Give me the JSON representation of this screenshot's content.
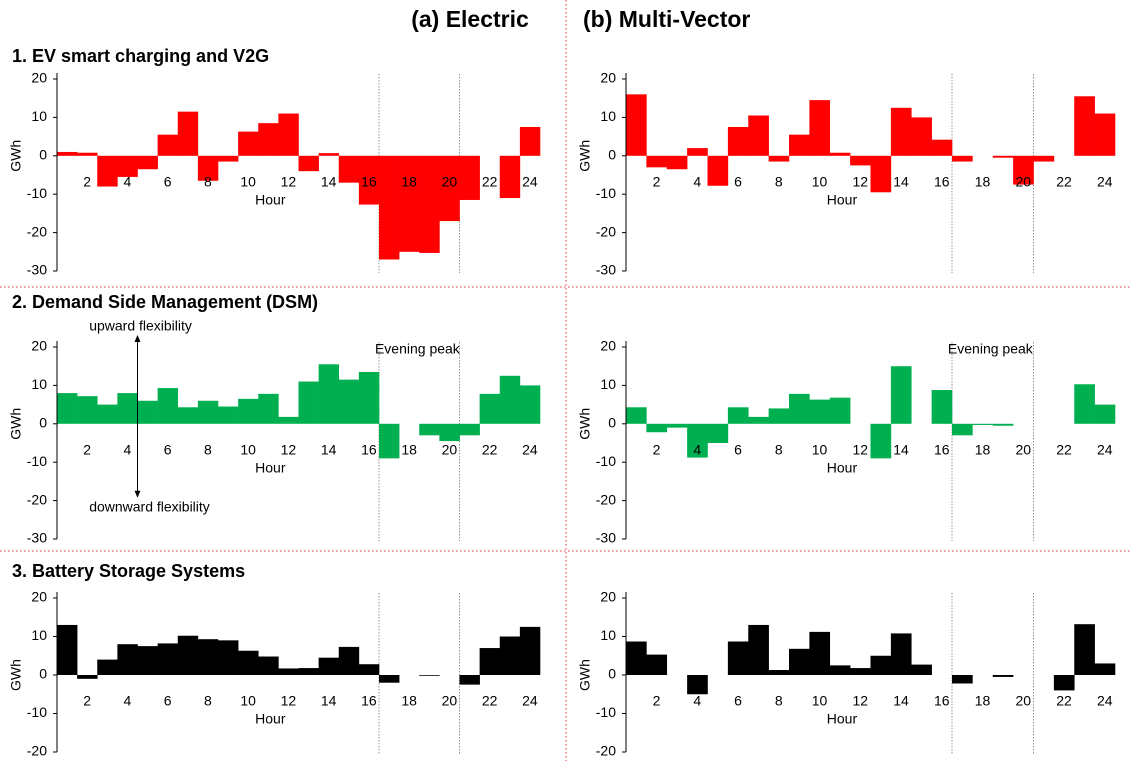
{
  "column_titles": [
    "(a) Electric",
    "(b) Multi-Vector"
  ],
  "row_titles": [
    "1. EV smart charging and V2G",
    "2. Demand Side Management (DSM)",
    "3. Battery Storage Systems"
  ],
  "chart_data": [
    {
      "type": "bar",
      "xlabel": "Hour",
      "ylabel": "GWh",
      "color": "#ff0000",
      "categories": [
        null,
        2,
        null,
        4,
        null,
        6,
        null,
        8,
        null,
        10,
        null,
        12,
        null,
        14,
        null,
        16,
        null,
        18,
        null,
        20,
        null,
        22,
        null,
        24
      ],
      "values": [
        1,
        0.8,
        -8,
        -5.5,
        -3.5,
        5.5,
        11.5,
        -6.5,
        -1.5,
        6.3,
        8.5,
        11,
        -4,
        0.7,
        -7,
        -12.7,
        -27,
        -25,
        -25.3,
        -17,
        -11.5,
        0,
        -11,
        7.5
      ],
      "ylim": [
        -30,
        20
      ],
      "yticks": [
        -30,
        -20,
        -10,
        0,
        10,
        20
      ]
    },
    {
      "type": "bar",
      "xlabel": "Hour",
      "ylabel": "GWh",
      "color": "#ff0000",
      "categories": [
        null,
        2,
        null,
        4,
        null,
        6,
        null,
        8,
        null,
        10,
        null,
        12,
        null,
        14,
        null,
        16,
        null,
        18,
        null,
        20,
        null,
        22,
        null,
        24
      ],
      "values": [
        16,
        -3,
        -3.5,
        2,
        -7.8,
        7.5,
        10.5,
        -1.5,
        5.5,
        14.5,
        0.8,
        -2.5,
        -9.5,
        12.5,
        10,
        4.2,
        -1.5,
        0,
        -0.5,
        -7.5,
        -1.5,
        0,
        15.5,
        11
      ],
      "ylim": [
        -30,
        20
      ],
      "yticks": [
        -30,
        -20,
        -10,
        0,
        10,
        20
      ]
    },
    {
      "type": "bar",
      "xlabel": "Hour",
      "ylabel": "GWh",
      "color": "#00b050",
      "categories": [
        null,
        2,
        null,
        4,
        null,
        6,
        null,
        8,
        null,
        10,
        null,
        12,
        null,
        14,
        null,
        16,
        null,
        18,
        null,
        20,
        null,
        22,
        null,
        24
      ],
      "values": [
        8,
        7.2,
        5,
        8,
        6,
        9.3,
        4.3,
        6,
        4.5,
        6.5,
        7.8,
        1.8,
        11,
        15.5,
        11.5,
        13.5,
        -9,
        0,
        -3,
        -4.5,
        -3,
        7.8,
        12.5,
        10
      ],
      "ylim": [
        -30,
        20
      ],
      "yticks": [
        -30,
        -20,
        -10,
        0,
        10,
        20
      ],
      "annotations": [
        "Evening peak",
        "upward flexibility",
        "downward flexibility"
      ]
    },
    {
      "type": "bar",
      "xlabel": "Hour",
      "ylabel": "GWh",
      "color": "#00b050",
      "categories": [
        null,
        2,
        null,
        4,
        null,
        6,
        null,
        8,
        null,
        10,
        null,
        12,
        null,
        14,
        null,
        16,
        null,
        18,
        null,
        20,
        null,
        22,
        null,
        24
      ],
      "values": [
        4.3,
        -2.2,
        -1,
        -8.8,
        -5,
        4.3,
        1.8,
        4,
        7.8,
        6.3,
        6.8,
        0,
        -9,
        15,
        0,
        8.8,
        -3,
        -0.3,
        -0.5,
        0,
        0,
        0,
        10.3,
        5
      ],
      "ylim": [
        -30,
        20
      ],
      "yticks": [
        -30,
        -20,
        -10,
        0,
        10,
        20
      ],
      "annotations": [
        "Evening peak"
      ]
    },
    {
      "type": "bar",
      "xlabel": "Hour",
      "ylabel": "GWh",
      "color": "#000000",
      "categories": [
        null,
        2,
        null,
        4,
        null,
        6,
        null,
        8,
        null,
        10,
        null,
        12,
        null,
        14,
        null,
        16,
        null,
        18,
        null,
        20,
        null,
        22,
        null,
        24
      ],
      "values": [
        13,
        -1,
        4,
        8,
        7.5,
        8.2,
        10.2,
        9.3,
        9,
        6.3,
        4.8,
        1.7,
        1.8,
        4.5,
        7.3,
        2.8,
        -2,
        0,
        -0.2,
        0,
        -2.5,
        7,
        10,
        12.5
      ],
      "ylim": [
        -20,
        20
      ],
      "yticks": [
        -20,
        -10,
        0,
        10,
        20
      ]
    },
    {
      "type": "bar",
      "xlabel": "Hour",
      "ylabel": "GWh",
      "color": "#000000",
      "categories": [
        null,
        2,
        null,
        4,
        null,
        6,
        null,
        8,
        null,
        10,
        null,
        12,
        null,
        14,
        null,
        16,
        null,
        18,
        null,
        20,
        null,
        22,
        null,
        24
      ],
      "values": [
        8.7,
        5.3,
        0,
        -5,
        0,
        8.7,
        13,
        1.3,
        6.8,
        11.2,
        2.5,
        1.8,
        5,
        10.8,
        2.7,
        0,
        -2.2,
        0,
        -0.5,
        0,
        0,
        -4,
        13.2,
        3
      ],
      "ylim": [
        -20,
        20
      ],
      "yticks": [
        -20,
        -10,
        0,
        10,
        20
      ]
    }
  ]
}
